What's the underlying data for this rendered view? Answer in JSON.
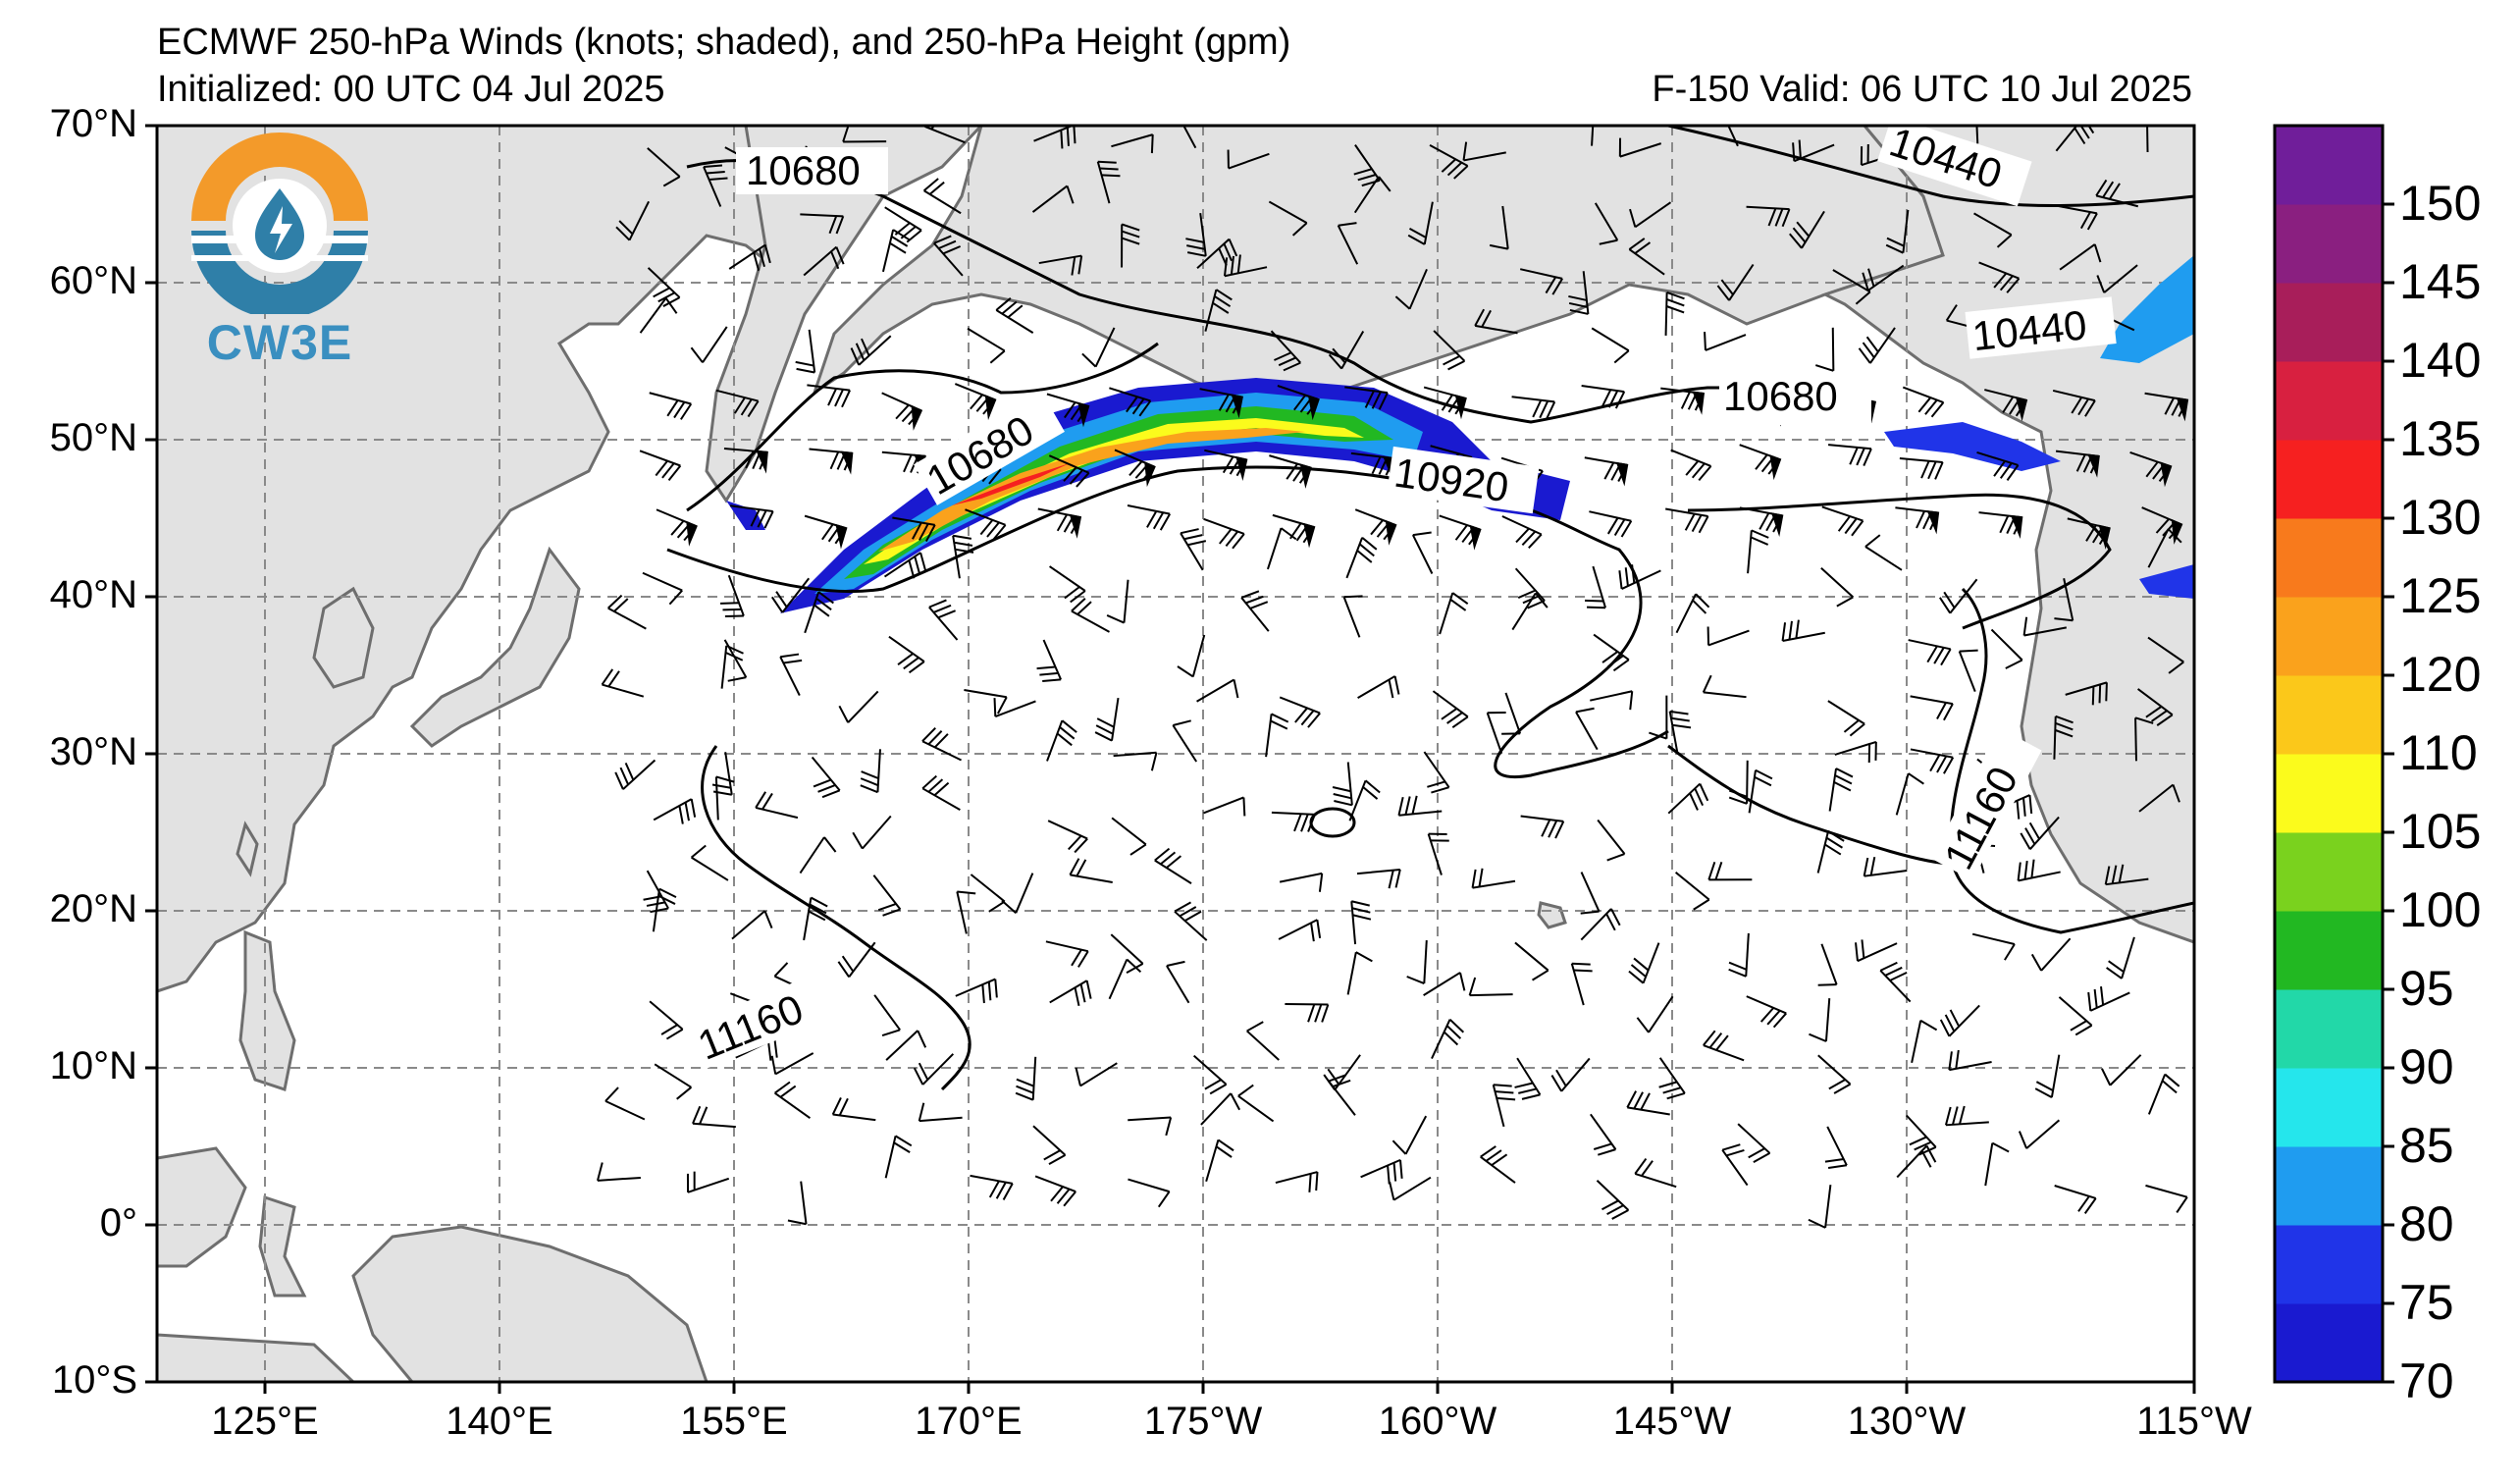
{
  "header": {
    "title": "ECMWF 250-hPa Winds (knots; shaded), and 250-hPa Height (gpm)",
    "initialized": "Initialized: 00 UTC 04 Jul 2025",
    "valid": "F-150  Valid: 06 UTC 10 Jul 2025"
  },
  "logo": {
    "text": "CW3E",
    "icon": "water-drop-lightning-icon"
  },
  "axes": {
    "lat_labels": [
      "70°N",
      "60°N",
      "50°N",
      "40°N",
      "30°N",
      "20°N",
      "10°N",
      "0°",
      "10°S"
    ],
    "lon_labels": [
      "125°E",
      "140°E",
      "155°E",
      "170°E",
      "175°W",
      "160°W",
      "145°W",
      "130°W",
      "115°W"
    ]
  },
  "contours": {
    "labels": [
      "10680",
      "10440",
      "10440",
      "10680",
      "10680",
      "10920",
      "11160",
      "11160"
    ]
  },
  "colorbar": {
    "labels": [
      "150",
      "145",
      "140",
      "135",
      "130",
      "125",
      "120",
      "110",
      "105",
      "100",
      "95",
      "90",
      "85",
      "80",
      "75",
      "70"
    ],
    "colors": [
      "#1a1ad0",
      "#2034e8",
      "#1f9cf0",
      "#25e6ec",
      "#22d8a8",
      "#22b822",
      "#7ad21e",
      "#fbfb1c",
      "#fbc81a",
      "#faa21c",
      "#f87a1c",
      "#f62020",
      "#d82040",
      "#a81e5a",
      "#8a1f80",
      "#701e9a"
    ]
  },
  "map_colors": {
    "land": "#e2e2e2",
    "coast": "#6e6e6e",
    "grid": "#8a8a8a"
  }
}
